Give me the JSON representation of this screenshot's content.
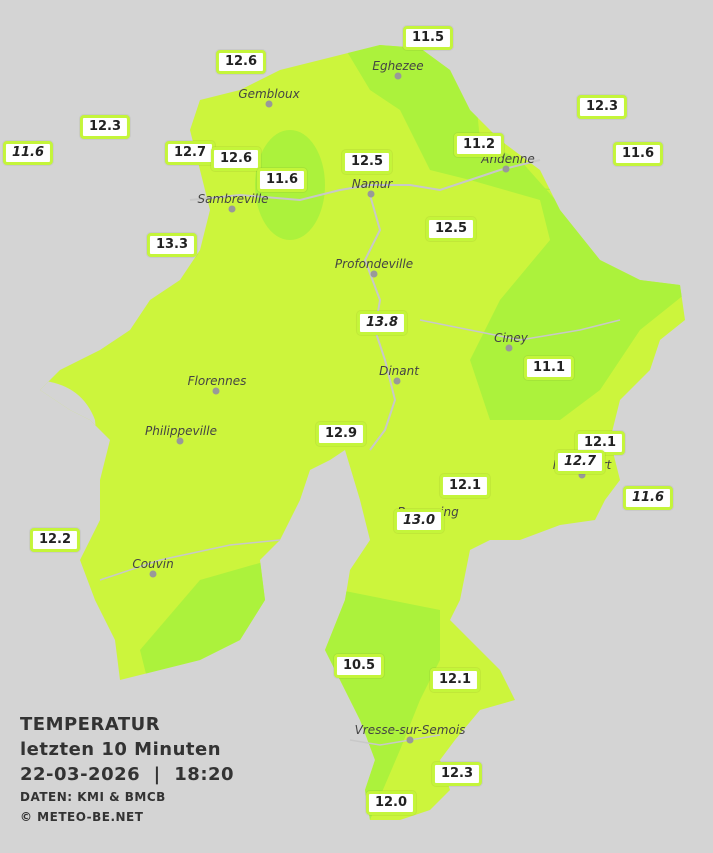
{
  "title": {
    "lines": [
      "TEMPERATUR",
      "letzten 10 Minuten",
      "22-03-2026  |  18:20"
    ],
    "credits": [
      "DATEN: KMI & BMCB",
      "© METEO-BE.NET"
    ]
  },
  "cities": [
    "Eghezee",
    "Gembloux",
    "Andenne",
    "Namur",
    "Sambreville",
    "Profondeville",
    "Ciney",
    "Dinant",
    "Florennes",
    "Philippeville",
    "Rochefort",
    "Beauraing",
    "Couvin",
    "Vresse-sur-Semois"
  ],
  "stations": [
    {
      "text": "11.5",
      "italic": false
    },
    {
      "text": "12.6",
      "italic": false
    },
    {
      "text": "12.3",
      "italic": false
    },
    {
      "text": "11.6",
      "italic": true
    },
    {
      "text": "12.7",
      "italic": false
    },
    {
      "text": "12.6",
      "italic": false
    },
    {
      "text": "11.6",
      "italic": false
    },
    {
      "text": "12.5",
      "italic": false
    },
    {
      "text": "11.2",
      "italic": false
    },
    {
      "text": "12.3",
      "italic": false
    },
    {
      "text": "11.6",
      "italic": false
    },
    {
      "text": "13.3",
      "italic": false
    },
    {
      "text": "12.5",
      "italic": false
    },
    {
      "text": "13.8",
      "italic": true
    },
    {
      "text": "11.1",
      "italic": false
    },
    {
      "text": "12.9",
      "italic": false
    },
    {
      "text": "12.1",
      "italic": false
    },
    {
      "text": "12.7",
      "italic": true
    },
    {
      "text": "12.1",
      "italic": false
    },
    {
      "text": "11.6",
      "italic": true
    },
    {
      "text": "13.0",
      "italic": true
    },
    {
      "text": "12.2",
      "italic": false
    },
    {
      "text": "10.5",
      "italic": false
    },
    {
      "text": "12.1",
      "italic": false
    },
    {
      "text": "12.3",
      "italic": false
    },
    {
      "text": "12.0",
      "italic": false
    }
  ]
}
